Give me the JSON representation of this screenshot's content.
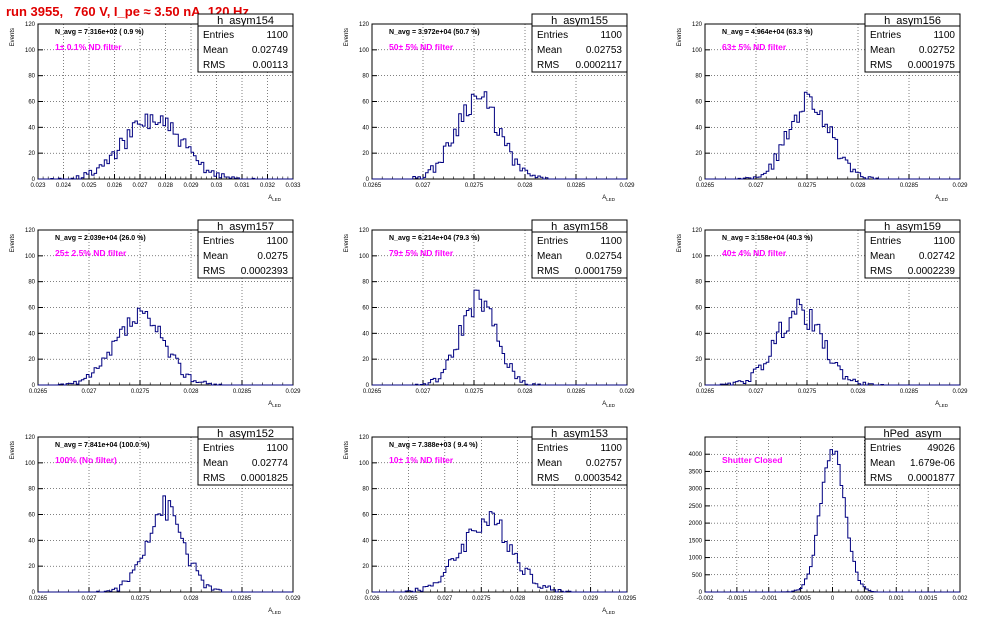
{
  "header": {
    "title": "run 3955,   760 V, I_pe ≈ 3.50 nA, 120 Hz"
  },
  "colors": {
    "histogram": "#000080",
    "filter_label": "#ff00ff",
    "title": "#e00000",
    "grid": "#000000",
    "frame": "#000000"
  },
  "chart_data": [
    {
      "type": "histogram",
      "hist_name": "h_asym154",
      "stats": {
        "Entries": "1100",
        "Mean": "0.02749",
        "RMS": "0.00113"
      },
      "n_avg_label": "N_avg = 7.316e+02 ( 0.9 %)",
      "filter_label": "1± 0.1% ND filter",
      "xlabel": "A_{LED}",
      "ylabel": "Events",
      "xlim": [
        0.023,
        0.033
      ],
      "ylim": [
        0,
        120
      ],
      "xticks": [
        "0.023",
        "0.024",
        "0.025",
        "0.026",
        "0.027",
        "0.028",
        "0.029",
        "0.03",
        "0.031",
        "0.032",
        "0.033"
      ],
      "yticks": [
        0,
        20,
        40,
        60,
        80,
        100,
        120
      ],
      "mean": 0.02749,
      "rms": 0.00113,
      "peak": 46,
      "entries": 1100,
      "seed": 154
    },
    {
      "type": "histogram",
      "hist_name": "h_asym155",
      "stats": {
        "Entries": "1100",
        "Mean": "0.02753",
        "RMS": "0.0002117"
      },
      "n_avg_label": "N_avg = 3.972e+04 (50.7 %)",
      "filter_label": "50± 5% ND filter",
      "xlabel": "A_{LED}",
      "ylabel": "Events",
      "xlim": [
        0.0265,
        0.029
      ],
      "ylim": [
        0,
        120
      ],
      "xticks": [
        "0.0265",
        "0.027",
        "0.0275",
        "0.028",
        "0.0285",
        "0.029"
      ],
      "yticks": [
        0,
        20,
        40,
        60,
        80,
        100,
        120
      ],
      "mean": 0.02753,
      "rms": 0.0002117,
      "peak": 63,
      "entries": 1100,
      "seed": 155
    },
    {
      "type": "histogram",
      "hist_name": "h_asym156",
      "stats": {
        "Entries": "1100",
        "Mean": "0.02752",
        "RMS": "0.0001975"
      },
      "n_avg_label": "N_avg = 4.964e+04 (63.3 %)",
      "filter_label": "63± 5% ND filter",
      "xlabel": "A_{LED}",
      "ylabel": "Events",
      "xlim": [
        0.0265,
        0.029
      ],
      "ylim": [
        0,
        120
      ],
      "xticks": [
        "0.0265",
        "0.027",
        "0.0275",
        "0.028",
        "0.0285",
        "0.029"
      ],
      "yticks": [
        0,
        20,
        40,
        60,
        80,
        100,
        120
      ],
      "mean": 0.02752,
      "rms": 0.0001975,
      "peak": 62,
      "entries": 1100,
      "seed": 156
    },
    {
      "type": "histogram",
      "hist_name": "h_asym157",
      "stats": {
        "Entries": "1100",
        "Mean": "0.0275",
        "RMS": "0.0002393"
      },
      "n_avg_label": "N_avg = 2.039e+04 (26.0 %)",
      "filter_label": "25± 2.5% ND filter",
      "xlabel": "A_{LED}",
      "ylabel": "Events",
      "xlim": [
        0.0265,
        0.029
      ],
      "ylim": [
        0,
        120
      ],
      "xticks": [
        "0.0265",
        "0.027",
        "0.0275",
        "0.028",
        "0.0285",
        "0.029"
      ],
      "yticks": [
        0,
        20,
        40,
        60,
        80,
        100,
        120
      ],
      "mean": 0.0275,
      "rms": 0.0002393,
      "peak": 52,
      "entries": 1100,
      "seed": 157
    },
    {
      "type": "histogram",
      "hist_name": "h_asym158",
      "stats": {
        "Entries": "1100",
        "Mean": "0.02754",
        "RMS": "0.0001759"
      },
      "n_avg_label": "N_avg = 6.214e+04 (79.3 %)",
      "filter_label": "79± 5% ND filter",
      "xlabel": "A_{LED}",
      "ylabel": "Events",
      "xlim": [
        0.0265,
        0.029
      ],
      "ylim": [
        0,
        120
      ],
      "xticks": [
        "0.0265",
        "0.027",
        "0.0275",
        "0.028",
        "0.0285",
        "0.029"
      ],
      "yticks": [
        0,
        20,
        40,
        60,
        80,
        100,
        120
      ],
      "mean": 0.02754,
      "rms": 0.0001759,
      "peak": 66,
      "entries": 1100,
      "seed": 158
    },
    {
      "type": "histogram",
      "hist_name": "h_asym159",
      "stats": {
        "Entries": "1100",
        "Mean": "0.02742",
        "RMS": "0.0002239"
      },
      "n_avg_label": "N_avg = 3.158e+04 (40.3 %)",
      "filter_label": "40± 4% ND filter",
      "xlabel": "A_{LED}",
      "ylabel": "Events",
      "xlim": [
        0.0265,
        0.029
      ],
      "ylim": [
        0,
        120
      ],
      "xticks": [
        "0.0265",
        "0.027",
        "0.0275",
        "0.028",
        "0.0285",
        "0.029"
      ],
      "yticks": [
        0,
        20,
        40,
        60,
        80,
        100,
        120
      ],
      "mean": 0.02742,
      "rms": 0.0002239,
      "peak": 57,
      "entries": 1100,
      "seed": 159
    },
    {
      "type": "histogram",
      "hist_name": "h_asym152",
      "stats": {
        "Entries": "1100",
        "Mean": "0.02774",
        "RMS": "0.0001825"
      },
      "n_avg_label": "N_avg = 7.841e+04 (100.0 %)",
      "filter_label": "100% (No filter)",
      "xlabel": "A_{LED}",
      "ylabel": "Events",
      "xlim": [
        0.0265,
        0.029
      ],
      "ylim": [
        0,
        120
      ],
      "xticks": [
        "0.0265",
        "0.027",
        "0.0275",
        "0.028",
        "0.0285",
        "0.029"
      ],
      "yticks": [
        0,
        20,
        40,
        60,
        80,
        100,
        120
      ],
      "mean": 0.02774,
      "rms": 0.0001825,
      "peak": 65,
      "entries": 1100,
      "seed": 152
    },
    {
      "type": "histogram",
      "hist_name": "h_asym153",
      "stats": {
        "Entries": "1100",
        "Mean": "0.02757",
        "RMS": "0.0003542"
      },
      "n_avg_label": "N_avg = 7.388e+03 ( 9.4 %)",
      "filter_label": "10± 1% ND filter",
      "xlabel": "A_{LED}",
      "ylabel": "Events",
      "xlim": [
        0.026,
        0.0295
      ],
      "ylim": [
        0,
        120
      ],
      "xticks": [
        "0.026",
        "0.0265",
        "0.027",
        "0.0275",
        "0.028",
        "0.0285",
        "0.029",
        "0.0295"
      ],
      "yticks": [
        0,
        20,
        40,
        60,
        80,
        100,
        120
      ],
      "mean": 0.02757,
      "rms": 0.0003542,
      "peak": 55,
      "entries": 1100,
      "seed": 153
    },
    {
      "type": "histogram",
      "hist_name": "hPed_asym",
      "stats": {
        "Entries": "49026",
        "Mean": "1.679e-06",
        "RMS": "0.0001877"
      },
      "n_avg_label": "",
      "filter_label": "Shutter Closed",
      "xlabel": "",
      "ylabel": "",
      "xlim": [
        -0.002,
        0.002
      ],
      "ylim": [
        0,
        4500
      ],
      "xticks": [
        "-0.002",
        "-0.0015",
        "-0.001",
        "-0.0005",
        "0",
        "0.0005",
        "0.001",
        "0.0015",
        "0.002"
      ],
      "yticks": [
        0,
        500,
        1000,
        1500,
        2000,
        2500,
        3000,
        3500,
        4000
      ],
      "mean": 1.679e-06,
      "rms": 0.0001877,
      "peak": 4200,
      "entries": 49026,
      "seed": 99
    }
  ]
}
